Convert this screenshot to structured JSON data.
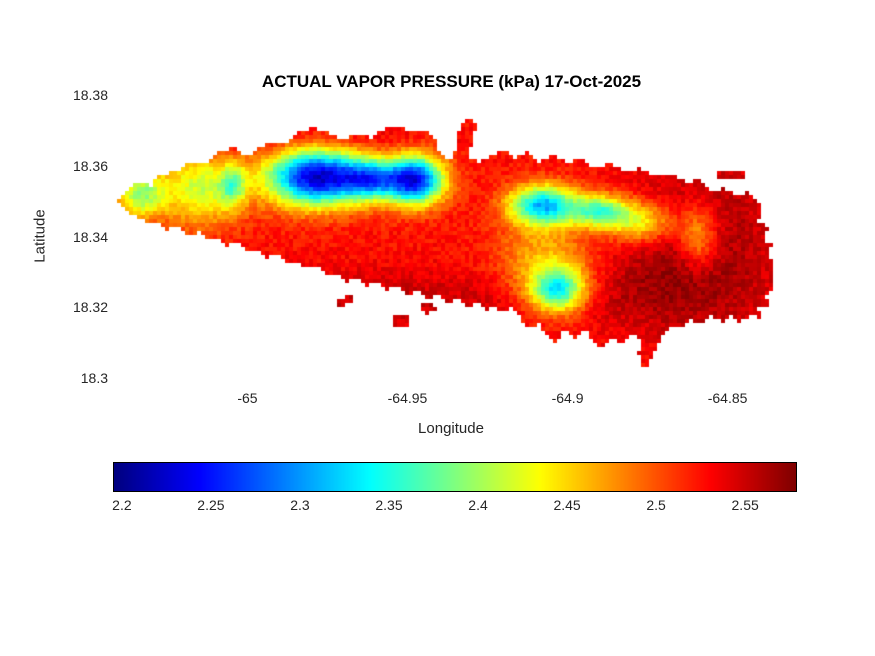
{
  "page": {
    "background": "#ffffff",
    "title_color": "#000000",
    "tick_color": "#262626"
  },
  "chart_data": {
    "type": "heatmap",
    "title": "ACTUAL VAPOR PRESSURE (kPa) 17-Oct-2025",
    "xlabel": "Longitude",
    "ylabel": "Latitude",
    "xlim": [
      -65.042,
      -64.8305
    ],
    "ylim": [
      18.3,
      18.38
    ],
    "xticks": [
      -65,
      -64.95,
      -64.9,
      -64.85
    ],
    "xtick_labels": [
      "-65",
      "-64.95",
      "-64.9",
      "-64.85"
    ],
    "yticks": [
      18.38,
      18.36,
      18.34,
      18.32,
      18.3
    ],
    "ytick_labels": [
      "18.38",
      "18.36",
      "18.34",
      "18.32",
      "18.3"
    ],
    "grid": false,
    "colormap": "jet",
    "value_range": [
      2.195,
      2.578
    ],
    "colorbar": {
      "orientation": "horizontal",
      "ticks": [
        2.2,
        2.25,
        2.3,
        2.35,
        2.4,
        2.45,
        2.5,
        2.55
      ],
      "tick_labels": [
        "2.2",
        "2.25",
        "2.3",
        "2.35",
        "2.4",
        "2.45",
        "2.5",
        "2.55"
      ]
    },
    "field": {
      "units": "axes-fraction",
      "base": 2.525,
      "noise": 0.013,
      "blobs": [
        {
          "u": 0.3,
          "v": 0.29,
          "su": 0.05,
          "sv": 0.07,
          "amp": -0.3
        },
        {
          "u": 0.446,
          "v": 0.3,
          "su": 0.03,
          "sv": 0.06,
          "amp": -0.28
        },
        {
          "u": 0.38,
          "v": 0.3,
          "su": 0.03,
          "sv": 0.05,
          "amp": -0.17
        },
        {
          "u": 0.635,
          "v": 0.39,
          "su": 0.035,
          "sv": 0.05,
          "amp": -0.21
        },
        {
          "u": 0.72,
          "v": 0.41,
          "su": 0.03,
          "sv": 0.04,
          "amp": -0.15
        },
        {
          "u": 0.78,
          "v": 0.45,
          "su": 0.035,
          "sv": 0.05,
          "amp": -0.1
        },
        {
          "u": 0.13,
          "v": 0.33,
          "su": 0.045,
          "sv": 0.09,
          "amp": -0.11
        },
        {
          "u": 0.177,
          "v": 0.32,
          "su": 0.013,
          "sv": 0.05,
          "amp": -0.09
        },
        {
          "u": 0.04,
          "v": 0.35,
          "su": 0.025,
          "sv": 0.06,
          "amp": -0.12
        },
        {
          "u": 0.657,
          "v": 0.69,
          "su": 0.028,
          "sv": 0.055,
          "amp": -0.17
        },
        {
          "u": 0.64,
          "v": 0.6,
          "su": 0.05,
          "sv": 0.1,
          "amp": -0.07
        },
        {
          "u": 0.865,
          "v": 0.5,
          "su": 0.02,
          "sv": 0.08,
          "amp": -0.08
        },
        {
          "u": 0.88,
          "v": 0.5,
          "su": 0.08,
          "sv": 0.25,
          "amp": 0.035
        },
        {
          "u": 0.45,
          "v": 0.72,
          "su": 0.25,
          "sv": 0.08,
          "amp": 0.025
        },
        {
          "u": 0.8,
          "v": 0.65,
          "su": 0.08,
          "sv": 0.12,
          "amp": 0.02
        },
        {
          "u": 0.25,
          "v": 0.16,
          "su": 0.15,
          "sv": 0.04,
          "amp": 0.02
        }
      ]
    },
    "island": {
      "units": "axes-fraction",
      "outline": [
        [
          0.006,
          0.382
        ],
        [
          0.018,
          0.336
        ],
        [
          0.04,
          0.307
        ],
        [
          0.055,
          0.322
        ],
        [
          0.069,
          0.283
        ],
        [
          0.092,
          0.272
        ],
        [
          0.114,
          0.24
        ],
        [
          0.136,
          0.247
        ],
        [
          0.158,
          0.201
        ],
        [
          0.18,
          0.187
        ],
        [
          0.195,
          0.223
        ],
        [
          0.21,
          0.194
        ],
        [
          0.229,
          0.17
        ],
        [
          0.254,
          0.17
        ],
        [
          0.276,
          0.127
        ],
        [
          0.298,
          0.117
        ],
        [
          0.321,
          0.134
        ],
        [
          0.343,
          0.159
        ],
        [
          0.357,
          0.134
        ],
        [
          0.38,
          0.152
        ],
        [
          0.402,
          0.117
        ],
        [
          0.424,
          0.113
        ],
        [
          0.446,
          0.134
        ],
        [
          0.461,
          0.117
        ],
        [
          0.476,
          0.159
        ],
        [
          0.483,
          0.212
        ],
        [
          0.498,
          0.23
        ],
        [
          0.505,
          0.194
        ],
        [
          0.51,
          0.141
        ],
        [
          0.517,
          0.095
        ],
        [
          0.527,
          0.078
        ],
        [
          0.538,
          0.099
        ],
        [
          0.532,
          0.159
        ],
        [
          0.524,
          0.212
        ],
        [
          0.542,
          0.24
        ],
        [
          0.56,
          0.212
        ],
        [
          0.579,
          0.187
        ],
        [
          0.594,
          0.223
        ],
        [
          0.613,
          0.201
        ],
        [
          0.631,
          0.237
        ],
        [
          0.653,
          0.212
        ],
        [
          0.672,
          0.24
        ],
        [
          0.69,
          0.223
        ],
        [
          0.712,
          0.258
        ],
        [
          0.734,
          0.24
        ],
        [
          0.756,
          0.272
        ],
        [
          0.778,
          0.258
        ],
        [
          0.801,
          0.29
        ],
        [
          0.823,
          0.276
        ],
        [
          0.845,
          0.307
        ],
        [
          0.867,
          0.3
        ],
        [
          0.885,
          0.336
        ],
        [
          0.904,
          0.329
        ],
        [
          0.923,
          0.357
        ],
        [
          0.938,
          0.343
        ],
        [
          0.953,
          0.378
        ],
        [
          0.96,
          0.413
        ],
        [
          0.953,
          0.449
        ],
        [
          0.968,
          0.47
        ],
        [
          0.959,
          0.512
        ],
        [
          0.973,
          0.53
        ],
        [
          0.968,
          0.576
        ],
        [
          0.979,
          0.59
        ],
        [
          0.971,
          0.636
        ],
        [
          0.978,
          0.671
        ],
        [
          0.963,
          0.707
        ],
        [
          0.971,
          0.742
        ],
        [
          0.953,
          0.753
        ],
        [
          0.959,
          0.788
        ],
        [
          0.941,
          0.777
        ],
        [
          0.926,
          0.802
        ],
        [
          0.911,
          0.777
        ],
        [
          0.9,
          0.802
        ],
        [
          0.885,
          0.781
        ],
        [
          0.867,
          0.813
        ],
        [
          0.852,
          0.788
        ],
        [
          0.84,
          0.83
        ],
        [
          0.823,
          0.813
        ],
        [
          0.811,
          0.859
        ],
        [
          0.801,
          0.901
        ],
        [
          0.793,
          0.947
        ],
        [
          0.783,
          0.965
        ],
        [
          0.776,
          0.919
        ],
        [
          0.781,
          0.866
        ],
        [
          0.767,
          0.841
        ],
        [
          0.752,
          0.883
        ],
        [
          0.737,
          0.859
        ],
        [
          0.722,
          0.894
        ],
        [
          0.708,
          0.866
        ],
        [
          0.697,
          0.83
        ],
        [
          0.682,
          0.859
        ],
        [
          0.668,
          0.83
        ],
        [
          0.653,
          0.873
        ],
        [
          0.638,
          0.848
        ],
        [
          0.628,
          0.802
        ],
        [
          0.616,
          0.83
        ],
        [
          0.601,
          0.788
        ],
        [
          0.589,
          0.753
        ],
        [
          0.579,
          0.777
        ],
        [
          0.564,
          0.742
        ],
        [
          0.554,
          0.767
        ],
        [
          0.539,
          0.732
        ],
        [
          0.524,
          0.753
        ],
        [
          0.51,
          0.717
        ],
        [
          0.495,
          0.742
        ],
        [
          0.48,
          0.707
        ],
        [
          0.465,
          0.724
        ],
        [
          0.451,
          0.689
        ],
        [
          0.436,
          0.707
        ],
        [
          0.421,
          0.671
        ],
        [
          0.406,
          0.689
        ],
        [
          0.391,
          0.661
        ],
        [
          0.377,
          0.675
        ],
        [
          0.362,
          0.647
        ],
        [
          0.347,
          0.661
        ],
        [
          0.332,
          0.626
        ],
        [
          0.318,
          0.64
        ],
        [
          0.303,
          0.604
        ],
        [
          0.288,
          0.618
        ],
        [
          0.273,
          0.583
        ],
        [
          0.258,
          0.597
        ],
        [
          0.244,
          0.562
        ],
        [
          0.229,
          0.576
        ],
        [
          0.214,
          0.541
        ],
        [
          0.199,
          0.555
        ],
        [
          0.185,
          0.519
        ],
        [
          0.17,
          0.534
        ],
        [
          0.155,
          0.498
        ],
        [
          0.14,
          0.512
        ],
        [
          0.126,
          0.484
        ],
        [
          0.111,
          0.498
        ],
        [
          0.096,
          0.463
        ],
        [
          0.081,
          0.477
        ],
        [
          0.066,
          0.449
        ],
        [
          0.052,
          0.463
        ],
        [
          0.037,
          0.428
        ],
        [
          0.022,
          0.413
        ]
      ],
      "islets": [
        [
          [
            0.329,
            0.717
          ],
          [
            0.353,
            0.71
          ],
          [
            0.356,
            0.738
          ],
          [
            0.332,
            0.745
          ]
        ],
        [
          [
            0.412,
            0.777
          ],
          [
            0.436,
            0.77
          ],
          [
            0.439,
            0.813
          ],
          [
            0.415,
            0.82
          ]
        ],
        [
          [
            0.456,
            0.742
          ],
          [
            0.474,
            0.735
          ],
          [
            0.477,
            0.767
          ],
          [
            0.459,
            0.774
          ]
        ],
        [
          [
            0.891,
            0.272
          ],
          [
            0.932,
            0.265
          ],
          [
            0.934,
            0.293
          ],
          [
            0.893,
            0.3
          ]
        ]
      ]
    }
  }
}
